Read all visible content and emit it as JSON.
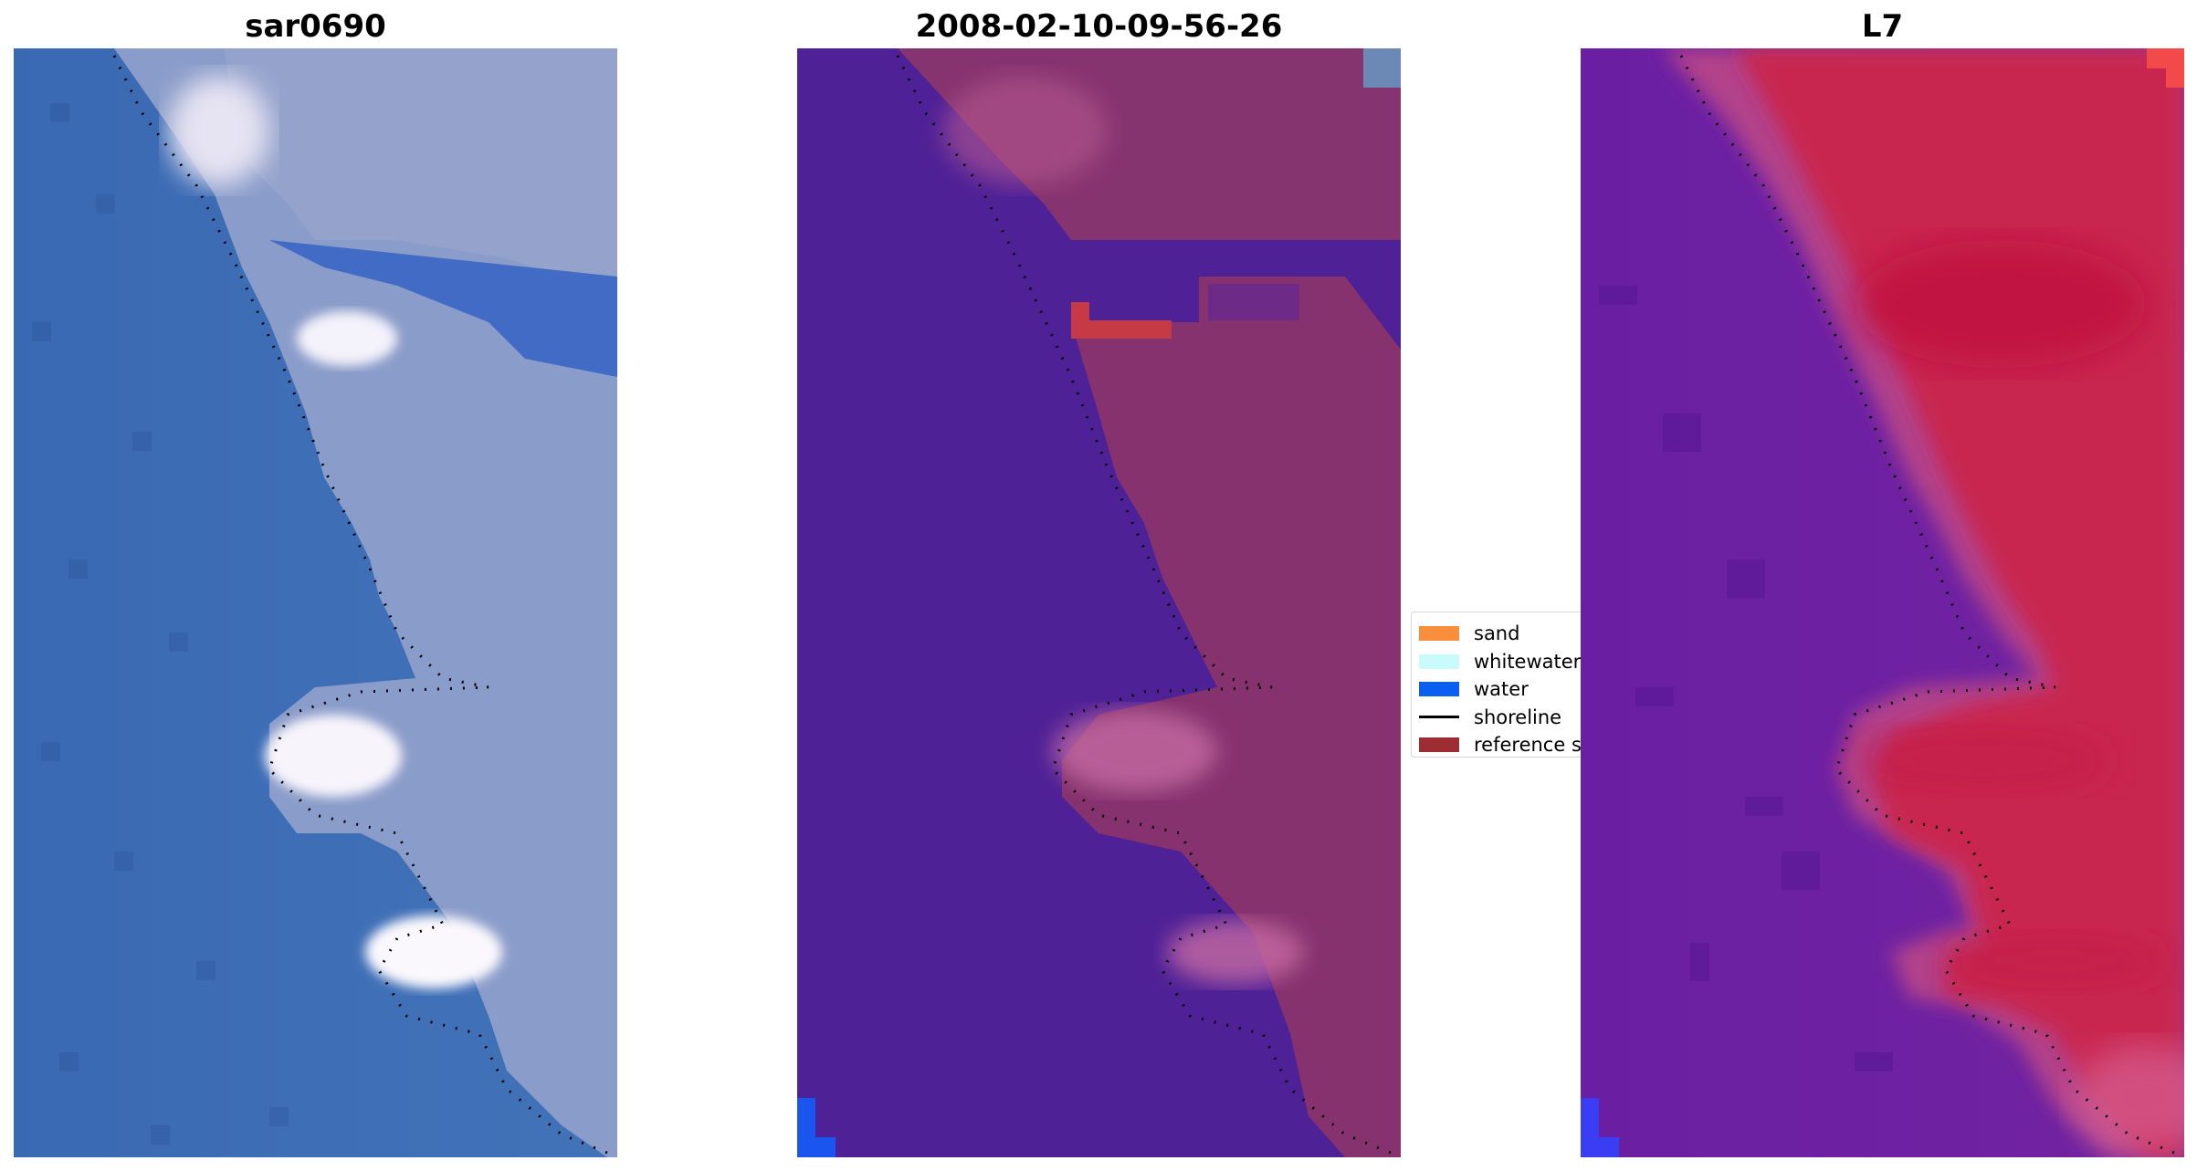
{
  "panels": [
    {
      "title": "sar0690"
    },
    {
      "title": "2008-02-10-09-56-26"
    },
    {
      "title": "L7"
    }
  ],
  "legend": {
    "items": [
      {
        "label": "sand",
        "color": "#f98e3c",
        "kind": "patch"
      },
      {
        "label": "whitewater",
        "color": "#c9fbfb",
        "kind": "patch"
      },
      {
        "label": "water",
        "color": "#0a5ff0",
        "kind": "patch"
      },
      {
        "label": "shoreline",
        "color": "#000000",
        "kind": "line"
      },
      {
        "label": "reference s",
        "color": "#9b2d33",
        "kind": "patch"
      }
    ]
  },
  "colors": {
    "rgb_water": "#3d6cb5",
    "rgb_land": "#8d9ec8",
    "class_water": "#4f2196",
    "class_land": "#86326e",
    "index_water": "#6a1fa3",
    "index_land": "#c4234f"
  }
}
